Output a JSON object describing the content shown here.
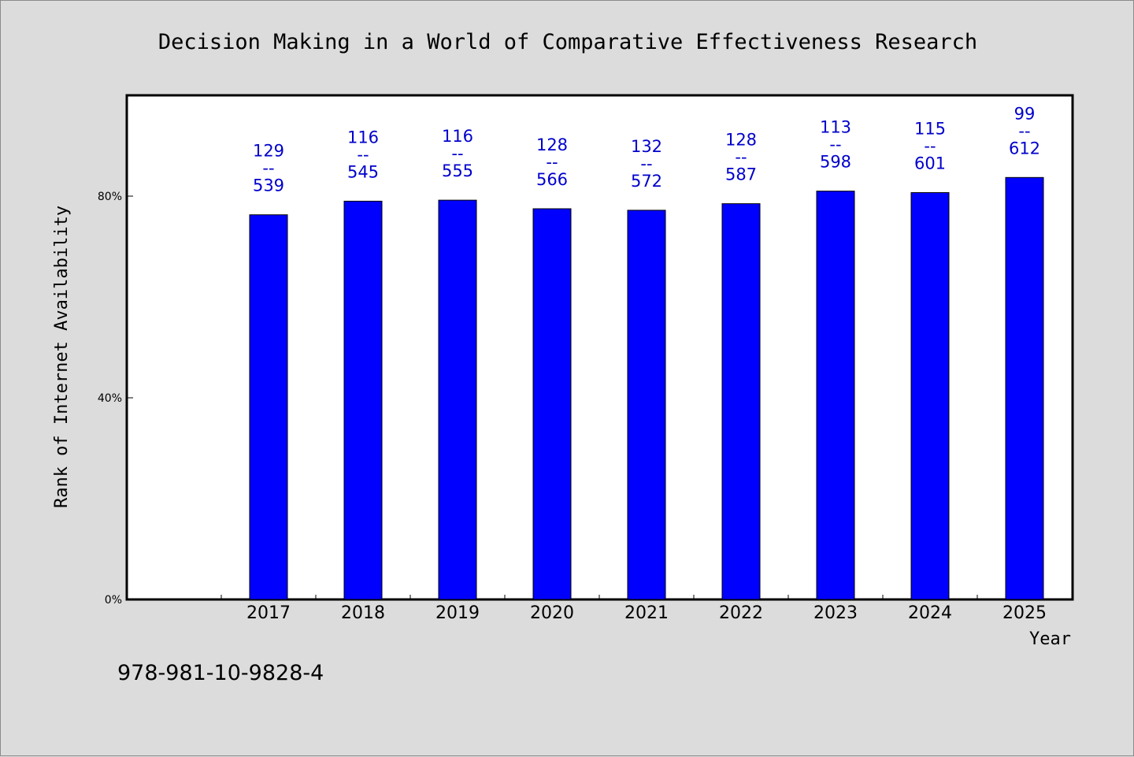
{
  "chart_data": {
    "type": "bar",
    "title": "Decision Making in a World of Comparative Effectiveness Research",
    "xlabel": "Year",
    "ylabel": "Rank of Internet Availability",
    "categories": [
      "2017",
      "2018",
      "2019",
      "2020",
      "2021",
      "2022",
      "2023",
      "2024",
      "2025"
    ],
    "values": [
      76.3,
      79.0,
      79.2,
      77.5,
      77.2,
      78.5,
      81.0,
      80.7,
      83.7
    ],
    "data_labels": [
      {
        "top": "129",
        "sep": "--",
        "bottom": "539"
      },
      {
        "top": "116",
        "sep": "--",
        "bottom": "545"
      },
      {
        "top": "116",
        "sep": "--",
        "bottom": "555"
      },
      {
        "top": "128",
        "sep": "--",
        "bottom": "566"
      },
      {
        "top": "132",
        "sep": "--",
        "bottom": "572"
      },
      {
        "top": "128",
        "sep": "--",
        "bottom": "587"
      },
      {
        "top": "113",
        "sep": "--",
        "bottom": "598"
      },
      {
        "top": "115",
        "sep": "--",
        "bottom": "601"
      },
      {
        "top": "99",
        "sep": "--",
        "bottom": "612"
      }
    ],
    "ylim": [
      0,
      100
    ],
    "yticks": [
      0,
      40,
      80
    ],
    "ytick_labels": [
      "0%",
      "40%",
      "80%"
    ],
    "grid": false,
    "colors": {
      "bar": "#0000ff",
      "label": "#0000cc",
      "plot_bg": "#ffffff",
      "page_bg": "#dcdcdc"
    }
  },
  "footer": {
    "isbn": "978-981-10-9828-4"
  }
}
